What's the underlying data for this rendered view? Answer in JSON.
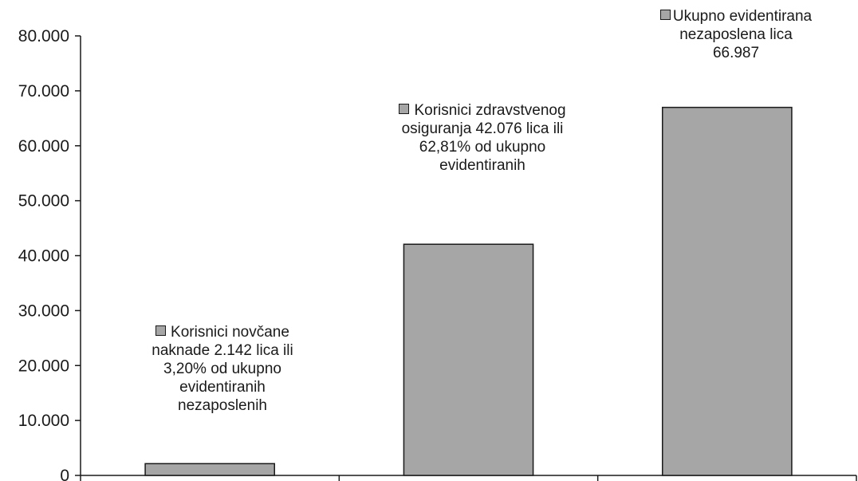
{
  "chart_data": {
    "type": "bar",
    "title": "",
    "xlabel": "",
    "ylabel": "",
    "categories": [
      "",
      "",
      ""
    ],
    "values": [
      2142,
      42076,
      66987
    ],
    "ylim": [
      0,
      80000
    ],
    "yticks": [
      0,
      10000,
      20000,
      30000,
      40000,
      50000,
      60000,
      70000,
      80000
    ],
    "ytick_labels": [
      "0",
      "10.000",
      "20.000",
      "30.000",
      "40.000",
      "50.000",
      "60.000",
      "70.000",
      "80.000"
    ],
    "bar_color": "#a6a6a6",
    "edge_color": "#1a1a1a",
    "grid": false,
    "annotations": [
      {
        "lines": [
          "Korisnici novčane",
          "naknade 2.142 lica ili",
          "3,20% od ukupno",
          "evidentiranih",
          "nezaposlenih"
        ]
      },
      {
        "lines": [
          "Korisnici zdravstvenog",
          "osiguranja 42.076 lica ili",
          "62,81% od ukupno",
          "evidentiranih"
        ]
      },
      {
        "lines": [
          "Ukupno evidentirana",
          "nezaposlena lica",
          "66.987"
        ]
      }
    ]
  }
}
